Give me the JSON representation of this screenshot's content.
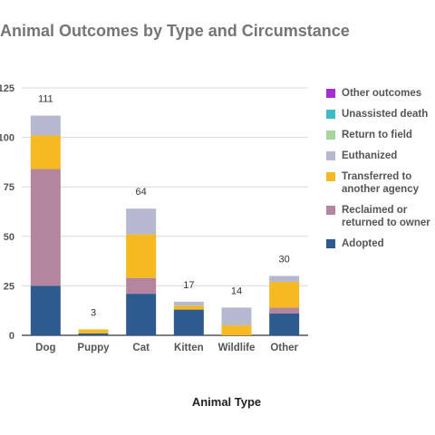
{
  "chart_data": {
    "type": "bar",
    "stacked": true,
    "title": "Animal Outcomes by Type and Circumstance",
    "xlabel": "Animal Type",
    "ylabel": "",
    "ylim": [
      0,
      125
    ],
    "yticks": [
      0,
      25,
      50,
      75,
      100,
      125
    ],
    "ytick_labels": [
      "0",
      "25",
      "50",
      "75",
      "100",
      "125"
    ],
    "grid": true,
    "legend_position": "right",
    "categories": [
      "Dog",
      "Puppy",
      "Cat",
      "Kitten",
      "Wildlife",
      "Other"
    ],
    "totals": [
      111,
      3,
      64,
      17,
      14,
      30
    ],
    "series": [
      {
        "name": "Adopted",
        "color": "#2e5b8f",
        "values": [
          25,
          1,
          21,
          13,
          0,
          11
        ]
      },
      {
        "name": "Reclaimed or returned to owner",
        "color": "#b3859f",
        "values": [
          59,
          0,
          8,
          0,
          0,
          3
        ]
      },
      {
        "name": "Transferred to another agency",
        "color": "#f5b921",
        "values": [
          17,
          2,
          22,
          2,
          5,
          13
        ]
      },
      {
        "name": "Euthanized",
        "color": "#b5b8cf",
        "values": [
          10,
          0,
          13,
          2,
          9,
          3
        ]
      },
      {
        "name": "Return to field",
        "color": "#a8d4a0",
        "values": [
          0,
          0,
          0,
          0,
          0,
          0
        ]
      },
      {
        "name": "Unassisted death",
        "color": "#3fbcc3",
        "values": [
          0,
          0,
          0,
          0,
          0,
          0
        ]
      },
      {
        "name": "Other outcomes",
        "color": "#a52fd3",
        "values": [
          0,
          0,
          0,
          0,
          0,
          0
        ]
      }
    ],
    "legend_order": [
      "Other outcomes",
      "Unassisted death",
      "Return to field",
      "Euthanized",
      "Transferred to another agency",
      "Reclaimed or returned to owner",
      "Adopted"
    ]
  }
}
